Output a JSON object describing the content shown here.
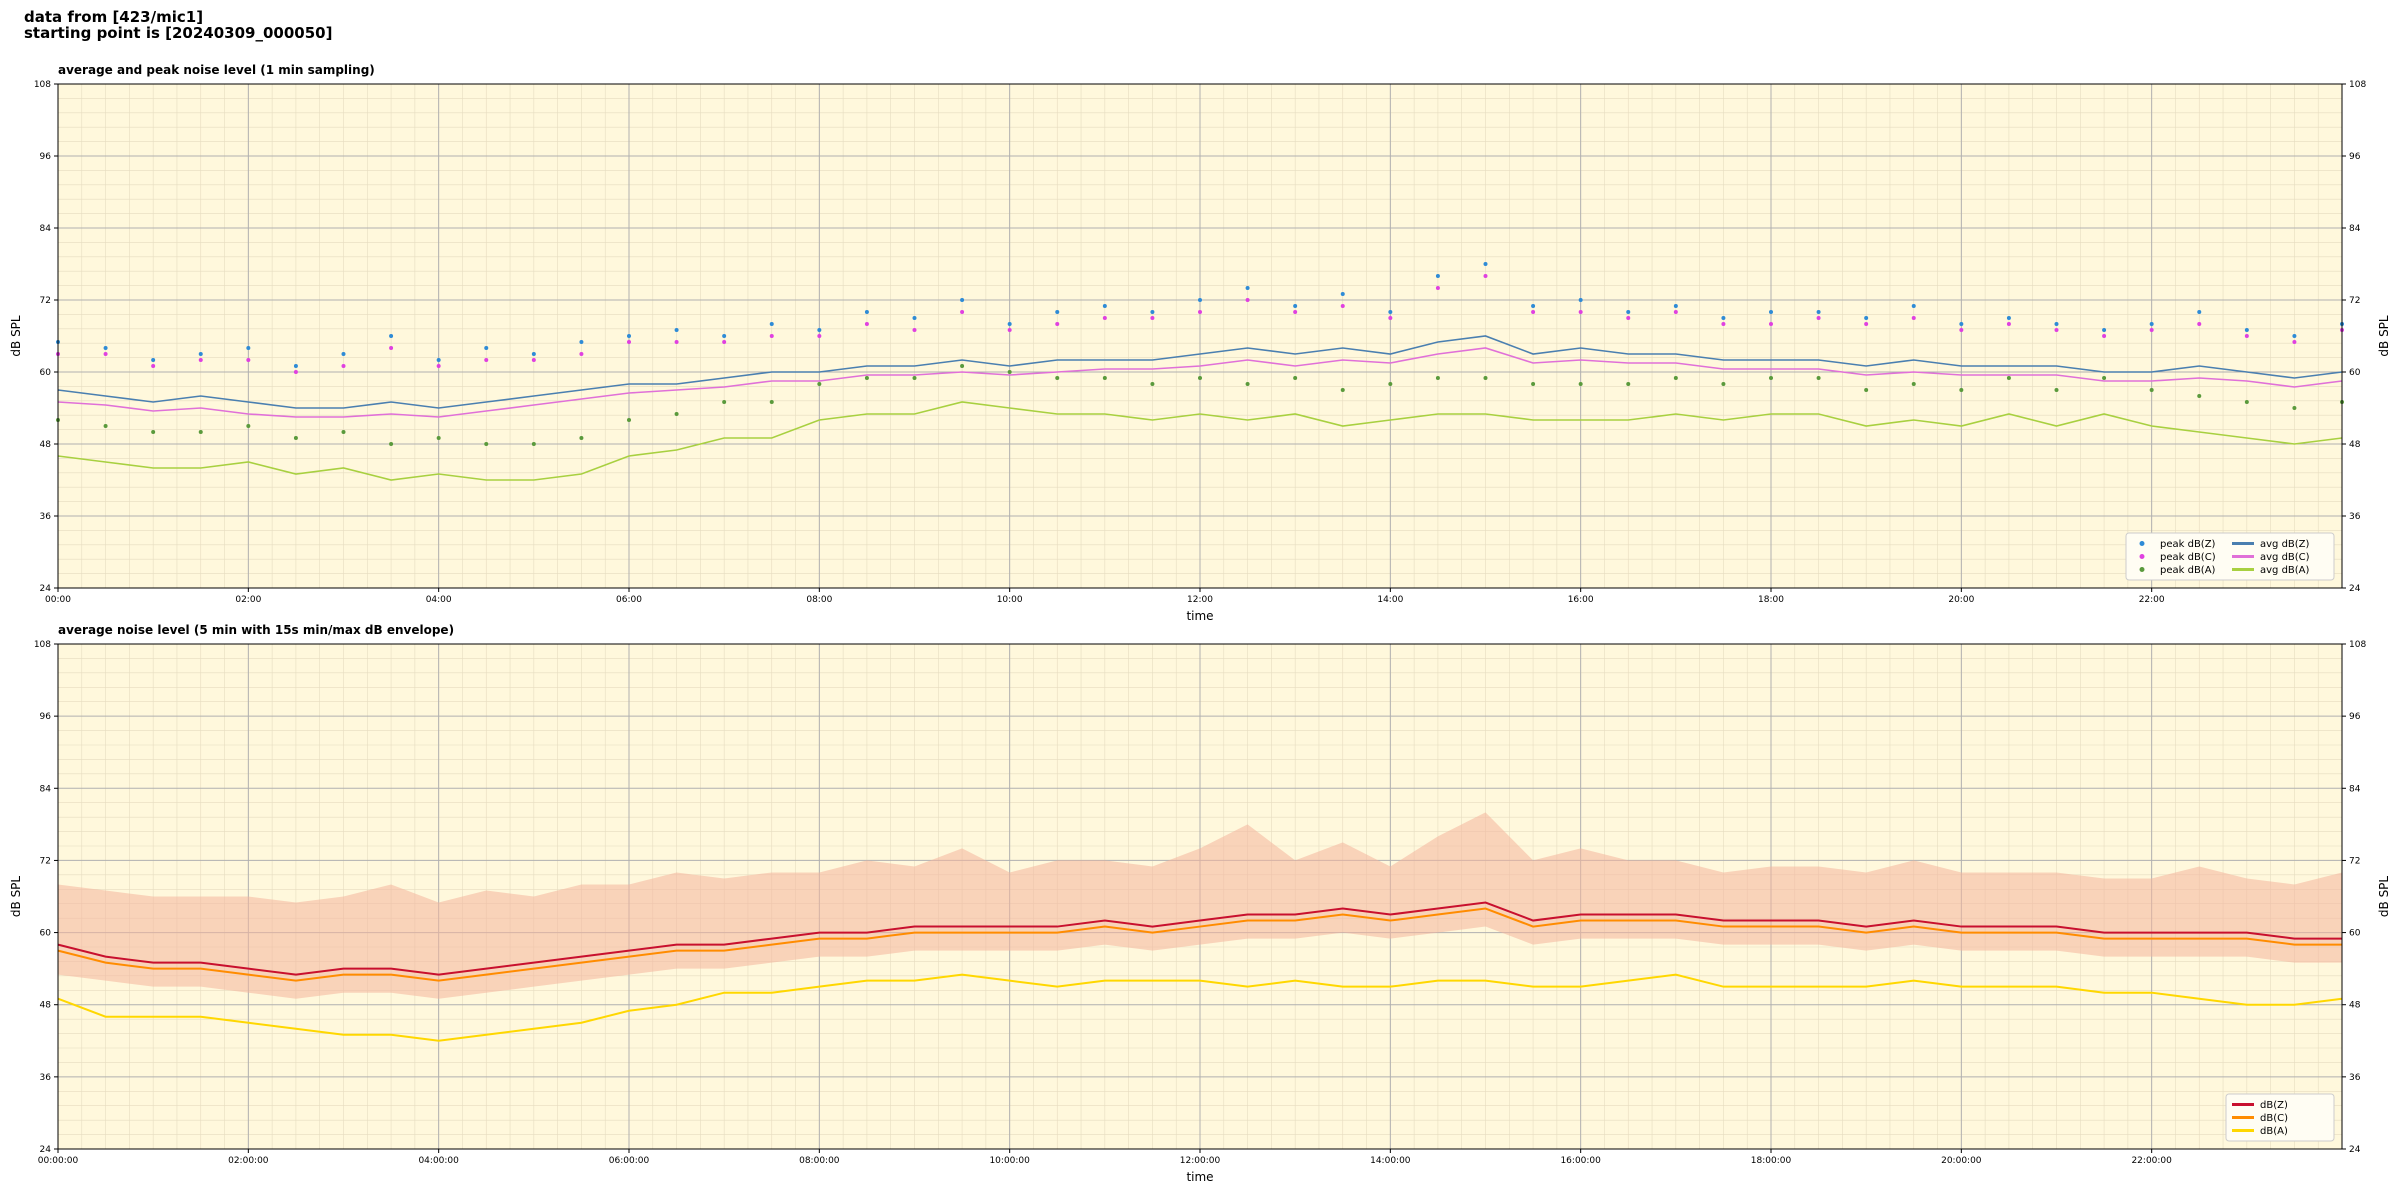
{
  "header": {
    "lines": [
      "data from [423/mic1]",
      "starting point is [20240309_000050]"
    ]
  },
  "chart_data": [
    {
      "type": "line",
      "title": "average and peak noise level (1 min sampling)",
      "xlabel": "time",
      "ylabel": "dB SPL",
      "x": [
        0,
        0.5,
        1,
        1.5,
        2,
        2.5,
        3,
        3.5,
        4,
        4.5,
        5,
        5.5,
        6,
        6.5,
        7,
        7.5,
        8,
        8.5,
        9,
        9.5,
        10,
        10.5,
        11,
        11.5,
        12,
        12.5,
        13,
        13.5,
        14,
        14.5,
        15,
        15.5,
        16,
        16.5,
        17,
        17.5,
        18,
        18.5,
        19,
        19.5,
        20,
        20.5,
        21,
        21.5,
        22,
        22.5,
        23,
        23.5,
        24
      ],
      "xlim": [
        0,
        24
      ],
      "xticks": [
        {
          "value": 0,
          "label": "00:00"
        },
        {
          "value": 2,
          "label": "02:00"
        },
        {
          "value": 4,
          "label": "04:00"
        },
        {
          "value": 6,
          "label": "06:00"
        },
        {
          "value": 8,
          "label": "08:00"
        },
        {
          "value": 10,
          "label": "10:00"
        },
        {
          "value": 12,
          "label": "12:00"
        },
        {
          "value": 14,
          "label": "14:00"
        },
        {
          "value": 16,
          "label": "16:00"
        },
        {
          "value": 18,
          "label": "18:00"
        },
        {
          "value": 20,
          "label": "20:00"
        },
        {
          "value": 22,
          "label": "22:00"
        }
      ],
      "ylim": [
        24,
        108
      ],
      "yticks": [
        24,
        36,
        48,
        60,
        72,
        84,
        96,
        108
      ],
      "grid": true,
      "legend": "lower right",
      "legend_columns": 2,
      "background": "#fff8dc",
      "series": [
        {
          "name": "peak dB(Z)",
          "color": "#2e8bd6",
          "style": "dots",
          "values": [
            65,
            64,
            62,
            63,
            64,
            61,
            63,
            66,
            62,
            64,
            63,
            65,
            66,
            67,
            66,
            68,
            67,
            70,
            69,
            72,
            68,
            70,
            71,
            70,
            72,
            74,
            71,
            73,
            70,
            76,
            78,
            71,
            72,
            70,
            71,
            69,
            70,
            70,
            69,
            71,
            68,
            69,
            68,
            67,
            68,
            70,
            67,
            66,
            68
          ]
        },
        {
          "name": "peak dB(C)",
          "color": "#e040e0",
          "style": "dots",
          "values": [
            63,
            63,
            61,
            62,
            62,
            60,
            61,
            64,
            61,
            62,
            62,
            63,
            65,
            65,
            65,
            66,
            66,
            68,
            67,
            70,
            67,
            68,
            69,
            69,
            70,
            72,
            70,
            71,
            69,
            74,
            76,
            70,
            70,
            69,
            70,
            68,
            68,
            69,
            68,
            69,
            67,
            68,
            67,
            66,
            67,
            68,
            66,
            65,
            67
          ]
        },
        {
          "name": "peak dB(A)",
          "color": "#5a9a3c",
          "style": "dots",
          "values": [
            52,
            51,
            50,
            50,
            51,
            49,
            50,
            48,
            49,
            48,
            48,
            49,
            52,
            53,
            55,
            55,
            58,
            59,
            59,
            61,
            60,
            59,
            59,
            58,
            59,
            58,
            59,
            57,
            58,
            59,
            59,
            58,
            58,
            58,
            59,
            58,
            59,
            59,
            57,
            58,
            57,
            59,
            57,
            59,
            57,
            56,
            55,
            54,
            55
          ]
        },
        {
          "name": "avg dB(Z)",
          "color": "#4a7fb0",
          "style": "line",
          "values": [
            57,
            56,
            55,
            56,
            55,
            54,
            54,
            55,
            54,
            55,
            56,
            57,
            58,
            58,
            59,
            60,
            60,
            61,
            61,
            62,
            61,
            62,
            62,
            62,
            63,
            64,
            63,
            64,
            63,
            65,
            66,
            63,
            64,
            63,
            63,
            62,
            62,
            62,
            61,
            62,
            61,
            61,
            61,
            60,
            60,
            61,
            60,
            59,
            60
          ]
        },
        {
          "name": "avg dB(C)",
          "color": "#e070d8",
          "style": "line",
          "values": [
            55,
            54.5,
            53.5,
            54,
            53,
            52.5,
            52.5,
            53,
            52.5,
            53.5,
            54.5,
            55.5,
            56.5,
            57,
            57.5,
            58.5,
            58.5,
            59.5,
            59.5,
            60,
            59.5,
            60,
            60.5,
            60.5,
            61,
            62,
            61,
            62,
            61.5,
            63,
            64,
            61.5,
            62,
            61.5,
            61.5,
            60.5,
            60.5,
            60.5,
            59.5,
            60,
            59.5,
            59.5,
            59.5,
            58.5,
            58.5,
            59,
            58.5,
            57.5,
            58.5
          ]
        },
        {
          "name": "avg dB(A)",
          "color": "#a8d040",
          "style": "line",
          "values": [
            46,
            45,
            44,
            44,
            45,
            43,
            44,
            42,
            43,
            42,
            42,
            43,
            46,
            47,
            49,
            49,
            52,
            53,
            53,
            55,
            54,
            53,
            53,
            52,
            53,
            52,
            53,
            51,
            52,
            53,
            53,
            52,
            52,
            52,
            53,
            52,
            53,
            53,
            51,
            52,
            51,
            53,
            51,
            53,
            51,
            50,
            49,
            48,
            49
          ]
        }
      ]
    },
    {
      "type": "line",
      "title": "average noise level (5 min with 15s min/max dB envelope)",
      "xlabel": "time",
      "ylabel": "dB SPL",
      "x": [
        0,
        0.5,
        1,
        1.5,
        2,
        2.5,
        3,
        3.5,
        4,
        4.5,
        5,
        5.5,
        6,
        6.5,
        7,
        7.5,
        8,
        8.5,
        9,
        9.5,
        10,
        10.5,
        11,
        11.5,
        12,
        12.5,
        13,
        13.5,
        14,
        14.5,
        15,
        15.5,
        16,
        16.5,
        17,
        17.5,
        18,
        18.5,
        19,
        19.5,
        20,
        20.5,
        21,
        21.5,
        22,
        22.5,
        23,
        23.5,
        24
      ],
      "xlim": [
        0,
        24
      ],
      "xticks": [
        {
          "value": 0,
          "label": "00:00:00"
        },
        {
          "value": 2,
          "label": "02:00:00"
        },
        {
          "value": 4,
          "label": "04:00:00"
        },
        {
          "value": 6,
          "label": "06:00:00"
        },
        {
          "value": 8,
          "label": "08:00:00"
        },
        {
          "value": 10,
          "label": "10:00:00"
        },
        {
          "value": 12,
          "label": "12:00:00"
        },
        {
          "value": 14,
          "label": "14:00:00"
        },
        {
          "value": 16,
          "label": "16:00:00"
        },
        {
          "value": 18,
          "label": "18:00:00"
        },
        {
          "value": 20,
          "label": "20:00:00"
        },
        {
          "value": 22,
          "label": "22:00:00"
        }
      ],
      "ylim": [
        24,
        108
      ],
      "yticks": [
        24,
        36,
        48,
        60,
        72,
        84,
        96,
        108
      ],
      "grid": true,
      "legend": "lower right",
      "legend_columns": 1,
      "background": "#fff8dc",
      "envelope": {
        "color": "#f4b49c",
        "low": [
          53,
          52,
          51,
          51,
          50,
          49,
          50,
          50,
          49,
          50,
          51,
          52,
          53,
          54,
          54,
          55,
          56,
          56,
          57,
          57,
          57,
          57,
          58,
          57,
          58,
          59,
          59,
          60,
          59,
          60,
          61,
          58,
          59,
          59,
          59,
          58,
          58,
          58,
          57,
          58,
          57,
          57,
          57,
          56,
          56,
          56,
          56,
          55,
          55
        ],
        "high": [
          68,
          67,
          66,
          66,
          66,
          65,
          66,
          68,
          65,
          67,
          66,
          68,
          68,
          70,
          69,
          70,
          70,
          72,
          71,
          74,
          70,
          72,
          72,
          71,
          74,
          78,
          72,
          75,
          71,
          76,
          80,
          72,
          74,
          72,
          72,
          70,
          71,
          71,
          70,
          72,
          70,
          70,
          70,
          69,
          69,
          71,
          69,
          68,
          70
        ]
      },
      "series": [
        {
          "name": "dB(Z)",
          "color": "#c8102e",
          "style": "line",
          "values": [
            58,
            56,
            55,
            55,
            54,
            53,
            54,
            54,
            53,
            54,
            55,
            56,
            57,
            58,
            58,
            59,
            60,
            60,
            61,
            61,
            61,
            61,
            62,
            61,
            62,
            63,
            63,
            64,
            63,
            64,
            65,
            62,
            63,
            63,
            63,
            62,
            62,
            62,
            61,
            62,
            61,
            61,
            61,
            60,
            60,
            60,
            60,
            59,
            59
          ]
        },
        {
          "name": "dB(C)",
          "color": "#ff8c00",
          "style": "line",
          "values": [
            57,
            55,
            54,
            54,
            53,
            52,
            53,
            53,
            52,
            53,
            54,
            55,
            56,
            57,
            57,
            58,
            59,
            59,
            60,
            60,
            60,
            60,
            61,
            60,
            61,
            62,
            62,
            63,
            62,
            63,
            64,
            61,
            62,
            62,
            62,
            61,
            61,
            61,
            60,
            61,
            60,
            60,
            60,
            59,
            59,
            59,
            59,
            58,
            58
          ]
        },
        {
          "name": "dB(A)",
          "color": "#ffd700",
          "style": "line",
          "values": [
            49,
            46,
            46,
            46,
            45,
            44,
            43,
            43,
            42,
            43,
            44,
            45,
            47,
            48,
            50,
            50,
            51,
            52,
            52,
            53,
            52,
            51,
            52,
            52,
            52,
            51,
            52,
            51,
            51,
            52,
            52,
            51,
            51,
            52,
            53,
            51,
            51,
            51,
            51,
            52,
            51,
            51,
            51,
            50,
            50,
            49,
            48,
            48,
            49
          ]
        }
      ]
    }
  ]
}
